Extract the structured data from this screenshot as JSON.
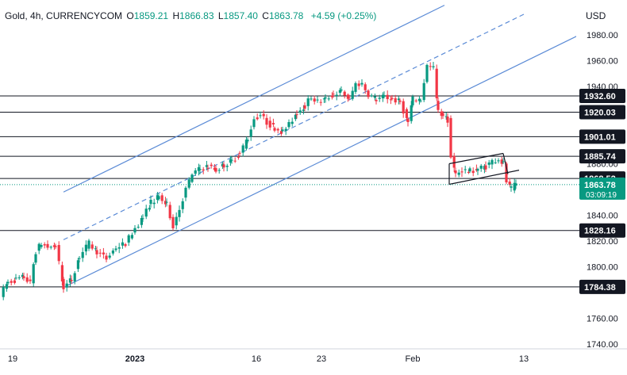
{
  "header": {
    "symbol": "Gold, 4h, CURRENCYCOM",
    "open_label": "O",
    "open": "1859.21",
    "high_label": "H",
    "high": "1866.83",
    "low_label": "L",
    "low": "1857.40",
    "close_label": "C",
    "close": "1863.78",
    "change": "+4.59 (+0.25%)"
  },
  "currency": "USD",
  "colors": {
    "up": "#089981",
    "down": "#f23645",
    "channel": "#5b8bd6",
    "level_line": "#131722",
    "current_tag": "#089981"
  },
  "chart_data": {
    "type": "candlestick",
    "instrument": "Gold",
    "timeframe": "4h",
    "ylim": [
      1730,
      1995
    ],
    "yticks": [
      1740,
      1760,
      1780,
      1800,
      1820,
      1840,
      1860,
      1880,
      1900,
      1920,
      1940,
      1960,
      1980
    ],
    "x_tick_labels": [
      "19",
      "2023",
      "16",
      "23",
      "Feb",
      "13"
    ],
    "grid": false,
    "key_levels": [
      {
        "value": 1932.6,
        "label": "1932.60"
      },
      {
        "value": 1920.03,
        "label": "1920.03"
      },
      {
        "value": 1901.01,
        "label": "1901.01"
      },
      {
        "value": 1885.74,
        "label": "1885.74"
      },
      {
        "value": 1868.52,
        "label": "1868.52"
      },
      {
        "value": 1828.16,
        "label": "1828.16"
      },
      {
        "value": 1784.38,
        "label": "1784.38"
      }
    ],
    "current_price": {
      "value": 1863.78,
      "label": "1863.78",
      "countdown": "03:09:19"
    },
    "price_path": [
      [
        0,
        1778
      ],
      [
        10,
        1788
      ],
      [
        20,
        1790
      ],
      [
        30,
        1792
      ],
      [
        38,
        1787
      ],
      [
        45,
        1812
      ],
      [
        52,
        1818
      ],
      [
        60,
        1815
      ],
      [
        70,
        1816
      ],
      [
        80,
        1784
      ],
      [
        90,
        1790
      ],
      [
        100,
        1808
      ],
      [
        112,
        1818
      ],
      [
        122,
        1812
      ],
      [
        134,
        1806
      ],
      [
        146,
        1815
      ],
      [
        158,
        1818
      ],
      [
        170,
        1830
      ],
      [
        180,
        1838
      ],
      [
        190,
        1850
      ],
      [
        200,
        1854
      ],
      [
        210,
        1848
      ],
      [
        218,
        1832
      ],
      [
        226,
        1845
      ],
      [
        234,
        1860
      ],
      [
        242,
        1872
      ],
      [
        252,
        1876
      ],
      [
        262,
        1878
      ],
      [
        272,
        1875
      ],
      [
        282,
        1879
      ],
      [
        292,
        1882
      ],
      [
        302,
        1888
      ],
      [
        312,
        1900
      ],
      [
        320,
        1915
      ],
      [
        328,
        1918
      ],
      [
        336,
        1912
      ],
      [
        346,
        1908
      ],
      [
        356,
        1905
      ],
      [
        364,
        1910
      ],
      [
        374,
        1920
      ],
      [
        384,
        1925
      ],
      [
        392,
        1932
      ],
      [
        400,
        1928
      ],
      [
        410,
        1930
      ],
      [
        420,
        1934
      ],
      [
        430,
        1936
      ],
      [
        440,
        1930
      ],
      [
        448,
        1942
      ],
      [
        456,
        1942
      ],
      [
        464,
        1934
      ],
      [
        474,
        1930
      ],
      [
        484,
        1932
      ],
      [
        494,
        1930
      ],
      [
        504,
        1928
      ],
      [
        514,
        1912
      ],
      [
        520,
        1930
      ],
      [
        530,
        1930
      ],
      [
        538,
        1956
      ],
      [
        546,
        1954
      ],
      [
        552,
        1920
      ],
      [
        558,
        1918
      ],
      [
        564,
        1914
      ],
      [
        568,
        1885
      ],
      [
        574,
        1872
      ],
      [
        582,
        1875
      ],
      [
        592,
        1874
      ],
      [
        602,
        1876
      ],
      [
        612,
        1878
      ],
      [
        620,
        1882
      ],
      [
        628,
        1884
      ],
      [
        634,
        1880
      ],
      [
        638,
        1866
      ],
      [
        644,
        1860
      ],
      [
        650,
        1864
      ]
    ],
    "channel": {
      "lower": [
        [
          80,
          1784
        ],
        [
          730,
          1980
        ]
      ],
      "upper": [
        [
          80,
          1858
        ],
        [
          560,
          2003
        ]
      ],
      "median": [
        [
          80,
          1821
        ],
        [
          660,
          1996
        ]
      ]
    },
    "flag": {
      "upper": [
        [
          566,
          1880
        ],
        [
          634,
          1888
        ]
      ],
      "lower": [
        [
          566,
          1864
        ],
        [
          654,
          1875
        ]
      ]
    }
  }
}
